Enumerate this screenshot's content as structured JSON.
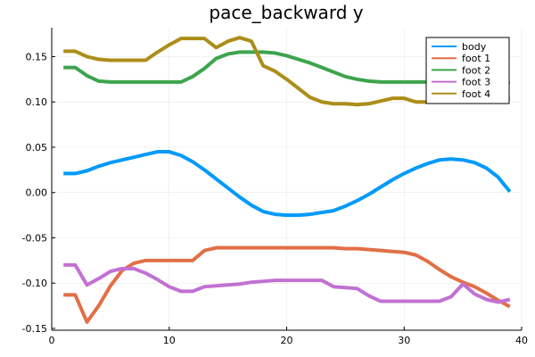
{
  "chart_data": {
    "type": "line",
    "title": "pace_backward y",
    "xlabel": "",
    "ylabel": "",
    "xlim": [
      0,
      40
    ],
    "ylim": [
      -0.152,
      0.182
    ],
    "xticks": [
      0,
      10,
      20,
      30,
      40
    ],
    "yticks": [
      -0.15,
      -0.1,
      -0.05,
      0.0,
      0.05,
      0.1,
      0.15
    ],
    "ytick_labels": [
      "-0.15",
      "-0.10",
      "-0.05",
      "0.00",
      "0.05",
      "0.10",
      "0.15"
    ],
    "grid": true,
    "legend_position": "top-right",
    "series": [
      {
        "name": "body",
        "color": "#009AFA",
        "x": [
          1,
          2,
          3,
          4,
          5,
          6,
          7,
          8,
          9,
          10,
          11,
          12,
          13,
          14,
          15,
          16,
          17,
          18,
          19,
          20,
          21,
          22,
          23,
          24,
          25,
          26,
          27,
          28,
          29,
          30,
          31,
          32,
          33,
          34,
          35,
          36,
          37,
          38,
          39
        ],
        "y": [
          0.021,
          0.021,
          0.024,
          0.029,
          0.033,
          0.036,
          0.039,
          0.042,
          0.045,
          0.045,
          0.041,
          0.034,
          0.025,
          0.015,
          0.005,
          -0.005,
          -0.014,
          -0.021,
          -0.024,
          -0.025,
          -0.025,
          -0.024,
          -0.022,
          -0.02,
          -0.015,
          -0.009,
          -0.002,
          0.006,
          0.014,
          0.021,
          0.027,
          0.032,
          0.036,
          0.037,
          0.036,
          0.033,
          0.027,
          0.017,
          0.001
        ]
      },
      {
        "name": "foot 1",
        "color": "#E26F46",
        "x": [
          1,
          2,
          3,
          4,
          5,
          6,
          7,
          8,
          9,
          10,
          11,
          12,
          13,
          14,
          15,
          16,
          17,
          18,
          19,
          20,
          21,
          22,
          23,
          24,
          25,
          26,
          27,
          28,
          29,
          30,
          31,
          32,
          33,
          34,
          35,
          36,
          37,
          38,
          39
        ],
        "y": [
          -0.113,
          -0.113,
          -0.143,
          -0.125,
          -0.103,
          -0.086,
          -0.078,
          -0.075,
          -0.075,
          -0.075,
          -0.075,
          -0.075,
          -0.064,
          -0.061,
          -0.061,
          -0.061,
          -0.061,
          -0.061,
          -0.061,
          -0.061,
          -0.061,
          -0.061,
          -0.061,
          -0.061,
          -0.062,
          -0.062,
          -0.063,
          -0.064,
          -0.065,
          -0.066,
          -0.069,
          -0.076,
          -0.085,
          -0.093,
          -0.099,
          -0.104,
          -0.111,
          -0.119,
          -0.126
        ]
      },
      {
        "name": "foot 2",
        "color": "#3DA44D",
        "x": [
          1,
          2,
          3,
          4,
          5,
          6,
          7,
          8,
          9,
          10,
          11,
          12,
          13,
          14,
          15,
          16,
          17,
          18,
          19,
          20,
          21,
          22,
          23,
          24,
          25,
          26,
          27,
          28,
          29,
          30,
          31,
          32,
          33,
          34,
          35,
          36,
          37,
          38,
          39
        ],
        "y": [
          0.138,
          0.138,
          0.129,
          0.123,
          0.122,
          0.122,
          0.122,
          0.122,
          0.122,
          0.122,
          0.122,
          0.128,
          0.137,
          0.148,
          0.153,
          0.155,
          0.155,
          0.155,
          0.154,
          0.151,
          0.147,
          0.143,
          0.138,
          0.133,
          0.128,
          0.125,
          0.123,
          0.122,
          0.122,
          0.122,
          0.122,
          0.122,
          0.122,
          0.122,
          0.122,
          0.122,
          0.122,
          0.122,
          0.121
        ]
      },
      {
        "name": "foot 3",
        "color": "#C271D2",
        "x": [
          1,
          2,
          3,
          4,
          5,
          6,
          7,
          8,
          9,
          10,
          11,
          12,
          13,
          14,
          15,
          16,
          17,
          18,
          19,
          20,
          21,
          22,
          23,
          24,
          25,
          26,
          27,
          28,
          29,
          30,
          31,
          32,
          33,
          34,
          35,
          36,
          37,
          38,
          39
        ],
        "y": [
          -0.08,
          -0.08,
          -0.102,
          -0.095,
          -0.087,
          -0.084,
          -0.084,
          -0.089,
          -0.096,
          -0.104,
          -0.109,
          -0.109,
          -0.104,
          -0.103,
          -0.102,
          -0.101,
          -0.099,
          -0.098,
          -0.097,
          -0.097,
          -0.097,
          -0.097,
          -0.097,
          -0.104,
          -0.105,
          -0.106,
          -0.114,
          -0.12,
          -0.12,
          -0.12,
          -0.12,
          -0.12,
          -0.12,
          -0.115,
          -0.101,
          -0.112,
          -0.118,
          -0.121,
          -0.118
        ]
      },
      {
        "name": "foot 4",
        "color": "#AC8D18",
        "x": [
          1,
          2,
          3,
          4,
          5,
          6,
          7,
          8,
          9,
          10,
          11,
          12,
          13,
          14,
          15,
          16,
          17,
          18,
          19,
          20,
          21,
          22,
          23,
          24,
          25,
          26,
          27,
          28,
          29,
          30,
          31,
          32,
          33,
          34,
          35,
          36,
          37,
          38,
          39
        ],
        "y": [
          0.156,
          0.156,
          0.15,
          0.147,
          0.146,
          0.146,
          0.146,
          0.146,
          0.155,
          0.163,
          0.17,
          0.17,
          0.17,
          0.16,
          0.167,
          0.171,
          0.167,
          0.14,
          0.134,
          0.125,
          0.115,
          0.105,
          0.1,
          0.098,
          0.098,
          0.097,
          0.098,
          0.101,
          0.104,
          0.104,
          0.1,
          0.1,
          0.1,
          0.1,
          0.1,
          0.1,
          0.1,
          0.104,
          0.104
        ]
      }
    ]
  }
}
